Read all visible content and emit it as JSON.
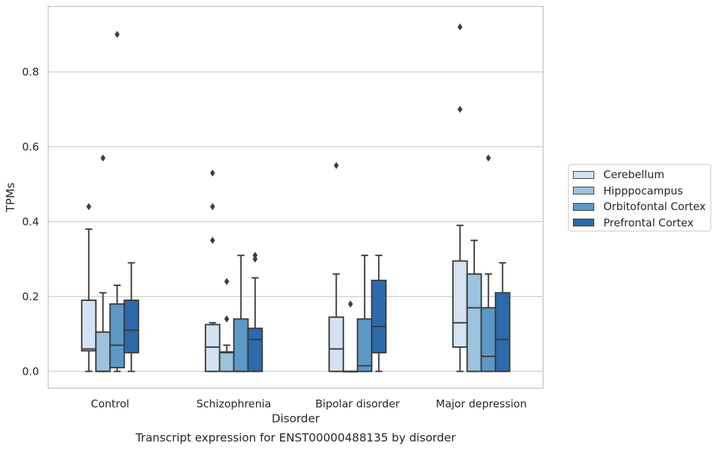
{
  "chart_data": {
    "type": "box",
    "caption": "Transcript expression for ENST00000488135 by disorder",
    "xlabel": "Disorder",
    "ylabel": "TPMs",
    "ylim": [
      -0.045,
      0.975
    ],
    "yticks": [
      "0.0",
      "0.2",
      "0.4",
      "0.6",
      "0.8"
    ],
    "ytick_values": [
      0.0,
      0.2,
      0.4,
      0.6,
      0.8
    ],
    "grid": "horizontal",
    "legend_placement": "right",
    "categories": [
      "Control",
      "Schizophrenia",
      "Bipolar disorder",
      "Major depression"
    ],
    "series": [
      {
        "name": "Cerebellum",
        "color": "#d4e3f2",
        "boxes": [
          {
            "whislo": 0.0,
            "q1": 0.055,
            "med": 0.06,
            "q3": 0.19,
            "whishi": 0.38,
            "fliers": [
              0.44
            ]
          },
          {
            "whislo": 0.0,
            "q1": 0.0,
            "med": 0.065,
            "q3": 0.125,
            "whishi": 0.13,
            "fliers": [
              0.53,
              0.44,
              0.35
            ]
          },
          {
            "whislo": 0.0,
            "q1": 0.0,
            "med": 0.06,
            "q3": 0.145,
            "whishi": 0.26,
            "fliers": [
              0.55
            ]
          },
          {
            "whislo": 0.0,
            "q1": 0.065,
            "med": 0.13,
            "q3": 0.295,
            "whishi": 0.39,
            "fliers": [
              0.92,
              0.7
            ]
          }
        ]
      },
      {
        "name": "Hipppocampus",
        "color": "#9dc2dd",
        "boxes": [
          {
            "whislo": 0.0,
            "q1": 0.0,
            "med": 0.0,
            "q3": 0.105,
            "whishi": 0.21,
            "fliers": [
              0.57
            ]
          },
          {
            "whislo": 0.0,
            "q1": 0.0,
            "med": 0.05,
            "q3": 0.052,
            "whishi": 0.07,
            "fliers": [
              0.24,
              0.14
            ]
          },
          {
            "whislo": 0.0,
            "q1": 0.0,
            "med": 0.0,
            "q3": 0.0,
            "whishi": 0.0,
            "fliers": [
              0.18
            ]
          },
          {
            "whislo": 0.0,
            "q1": 0.0,
            "med": 0.17,
            "q3": 0.26,
            "whishi": 0.35,
            "fliers": []
          }
        ]
      },
      {
        "name": "Orbitofontal Cortex",
        "color": "#5c99c6",
        "boxes": [
          {
            "whislo": 0.0,
            "q1": 0.01,
            "med": 0.07,
            "q3": 0.18,
            "whishi": 0.23,
            "fliers": [
              0.9
            ]
          },
          {
            "whislo": 0.0,
            "q1": 0.0,
            "med": 0.0,
            "q3": 0.14,
            "whishi": 0.31,
            "fliers": []
          },
          {
            "whislo": 0.0,
            "q1": 0.0,
            "med": 0.015,
            "q3": 0.14,
            "whishi": 0.31,
            "fliers": []
          },
          {
            "whislo": 0.0,
            "q1": 0.0,
            "med": 0.04,
            "q3": 0.17,
            "whishi": 0.26,
            "fliers": [
              0.57
            ]
          }
        ]
      },
      {
        "name": "Prefrontal Cortex",
        "color": "#2b6aab",
        "boxes": [
          {
            "whislo": 0.0,
            "q1": 0.05,
            "med": 0.11,
            "q3": 0.19,
            "whishi": 0.29,
            "fliers": []
          },
          {
            "whislo": 0.0,
            "q1": 0.0,
            "med": 0.085,
            "q3": 0.115,
            "whishi": 0.25,
            "fliers": [
              0.31,
              0.3
            ]
          },
          {
            "whislo": 0.0,
            "q1": 0.05,
            "med": 0.12,
            "q3": 0.243,
            "whishi": 0.31,
            "fliers": []
          },
          {
            "whislo": 0.0,
            "q1": 0.0,
            "med": 0.085,
            "q3": 0.21,
            "whishi": 0.29,
            "fliers": []
          }
        ]
      }
    ]
  }
}
